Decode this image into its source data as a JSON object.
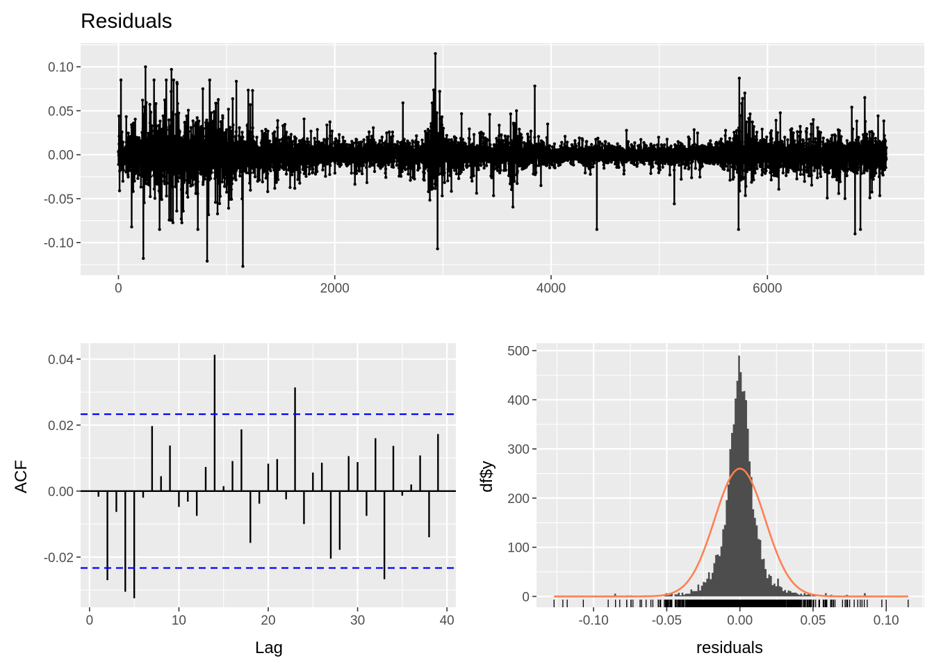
{
  "colors": {
    "panel_bg": "#EBEBEB",
    "grid": "#FFFFFF",
    "line": "#000000",
    "ci": "#0000FF",
    "bars": "#4D4D4D",
    "density": "#FF7F50"
  },
  "chart_data": [
    {
      "id": "residuals-ts",
      "type": "line",
      "title": "Residuals",
      "xlabel": "",
      "ylabel": "",
      "xlim": [
        -350,
        7450
      ],
      "ylim": [
        -0.137,
        0.127
      ],
      "xticks": [
        0,
        2000,
        4000,
        6000
      ],
      "xtick_labels": [
        "0",
        "2000",
        "4000",
        "6000"
      ],
      "yticks": [
        -0.1,
        -0.05,
        0.0,
        0.05,
        0.1
      ],
      "ytick_labels": [
        "-0.10",
        "-0.05",
        "0.00",
        "0.05",
        "0.10"
      ],
      "grid": true,
      "markers": true,
      "n_points": 7100,
      "amplitude_profile": [
        [
          0,
          0.014
        ],
        [
          200,
          0.016
        ],
        [
          230,
          0.028
        ],
        [
          700,
          0.024
        ],
        [
          1300,
          0.014
        ],
        [
          2000,
          0.009
        ],
        [
          2800,
          0.01
        ],
        [
          2900,
          0.026
        ],
        [
          3000,
          0.013
        ],
        [
          3300,
          0.008
        ],
        [
          3600,
          0.009
        ],
        [
          3650,
          0.02
        ],
        [
          3750,
          0.01
        ],
        [
          4000,
          0.007
        ],
        [
          5200,
          0.006
        ],
        [
          5600,
          0.009
        ],
        [
          5750,
          0.018
        ],
        [
          5900,
          0.011
        ],
        [
          7100,
          0.013
        ]
      ],
      "extreme_points": [
        [
          5,
          0.044
        ],
        [
          10,
          -0.041
        ],
        [
          230,
          -0.118
        ],
        [
          250,
          0.1
        ],
        [
          380,
          -0.085
        ],
        [
          490,
          0.097
        ],
        [
          820,
          -0.121
        ],
        [
          780,
          0.075
        ],
        [
          1150,
          -0.127
        ],
        [
          1240,
          0.073
        ],
        [
          2630,
          -0.07
        ],
        [
          2630,
          0.059
        ],
        [
          2930,
          0.115
        ],
        [
          2950,
          -0.107
        ],
        [
          2970,
          0.072
        ],
        [
          3680,
          -0.062
        ],
        [
          3680,
          0.05
        ],
        [
          5740,
          -0.085
        ],
        [
          5740,
          0.087
        ],
        [
          5770,
          0.064
        ],
        [
          6780,
          0.054
        ],
        [
          6810,
          -0.09
        ],
        [
          6900,
          0.065
        ]
      ]
    },
    {
      "id": "acf",
      "type": "bar",
      "title": "",
      "xlabel": "Lag",
      "ylabel": "ACF",
      "xlim": [
        -1,
        41
      ],
      "ylim": [
        -0.0352,
        0.0448
      ],
      "xticks": [
        0,
        10,
        20,
        30,
        40
      ],
      "xtick_labels": [
        "0",
        "10",
        "20",
        "30",
        "40"
      ],
      "yticks": [
        -0.02,
        0.0,
        0.02,
        0.04
      ],
      "ytick_labels": [
        "-0.02",
        "0.00",
        "0.02",
        "0.04"
      ],
      "grid": true,
      "ci": 0.0233,
      "lags": [
        1,
        2,
        3,
        4,
        5,
        6,
        7,
        8,
        9,
        10,
        11,
        12,
        13,
        14,
        15,
        16,
        17,
        18,
        19,
        20,
        21,
        22,
        23,
        24,
        25,
        26,
        27,
        28,
        29,
        30,
        31,
        32,
        33,
        34,
        35,
        36,
        37,
        38,
        39
      ],
      "values": [
        -0.0017,
        -0.027,
        -0.0063,
        -0.0305,
        -0.0325,
        -0.002,
        0.0197,
        0.0045,
        0.0138,
        -0.0048,
        -0.0032,
        -0.0075,
        0.0073,
        0.0413,
        0.0015,
        0.0091,
        0.0187,
        -0.0157,
        -0.0038,
        0.0083,
        0.0097,
        -0.0025,
        0.0314,
        -0.01,
        0.0056,
        0.0086,
        -0.0205,
        -0.0178,
        0.0106,
        0.0088,
        -0.0075,
        0.016,
        -0.0267,
        0.0137,
        -0.0014,
        0.002,
        0.0108,
        -0.014,
        0.0173
      ]
    },
    {
      "id": "histogram",
      "type": "bar",
      "title": "",
      "xlabel": "residuals",
      "ylabel": "df$y",
      "xlim": [
        -0.139,
        0.126
      ],
      "ylim": [
        -22,
        515
      ],
      "xticks": [
        -0.1,
        -0.05,
        0.0,
        0.05,
        0.1
      ],
      "xtick_labels": [
        "-0.10",
        "-0.05",
        "0.00",
        "0.05",
        "0.10"
      ],
      "yticks": [
        0,
        100,
        200,
        300,
        400,
        500
      ],
      "ytick_labels": [
        "0",
        "100",
        "200",
        "300",
        "400",
        "500"
      ],
      "grid": true,
      "bin_range": [
        -0.127,
        0.115
      ],
      "bin_width": 0.00121,
      "histogram_peak": 490,
      "density_peak": 260,
      "density_sd": 0.0172,
      "rug_range": [
        -0.127,
        0.115
      ]
    }
  ]
}
